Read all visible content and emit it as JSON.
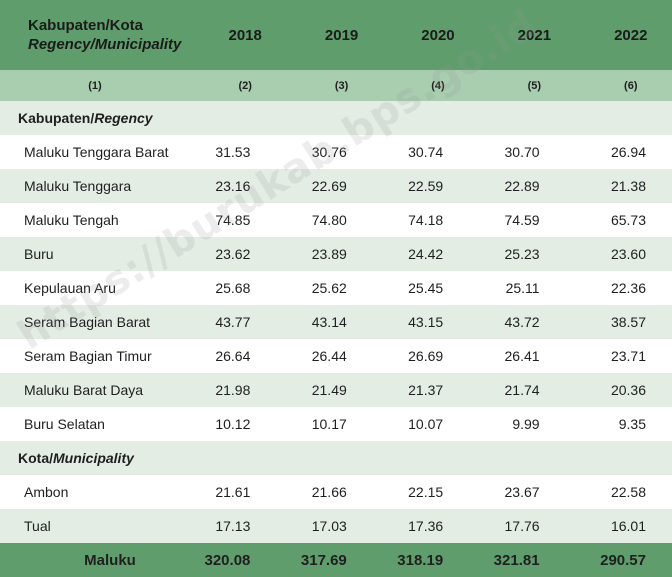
{
  "header": {
    "col1_line1": "Kabupaten/Kota",
    "col1_line2": "Regency/Municipality",
    "years": [
      "2018",
      "2019",
      "2020",
      "2021",
      "2022"
    ],
    "col_numbers": [
      "(1)",
      "(2)",
      "(3)",
      "(4)",
      "(5)",
      "(6)"
    ]
  },
  "sections": {
    "regency": {
      "label_plain": "Kabupaten/",
      "label_italic": "Regency"
    },
    "municipality": {
      "label_plain": "Kota/",
      "label_italic": "Municipality"
    }
  },
  "regencies": [
    {
      "name": "Maluku Tenggara Barat",
      "values": [
        "31.53",
        "30.76",
        "30.74",
        "30.70",
        "26.94"
      ]
    },
    {
      "name": "Maluku Tenggara",
      "values": [
        "23.16",
        "22.69",
        "22.59",
        "22.89",
        "21.38"
      ]
    },
    {
      "name": "Maluku Tengah",
      "values": [
        "74.85",
        "74.80",
        "74.18",
        "74.59",
        "65.73"
      ]
    },
    {
      "name": "Buru",
      "values": [
        "23.62",
        "23.89",
        "24.42",
        "25.23",
        "23.60"
      ]
    },
    {
      "name": "Kepulauan Aru",
      "values": [
        "25.68",
        "25.62",
        "25.45",
        "25.11",
        "22.36"
      ]
    },
    {
      "name": "Seram Bagian Barat",
      "values": [
        "43.77",
        "43.14",
        "43.15",
        "43.72",
        "38.57"
      ]
    },
    {
      "name": "Seram Bagian Timur",
      "values": [
        "26.64",
        "26.44",
        "26.69",
        "26.41",
        "23.71"
      ]
    },
    {
      "name": "Maluku Barat Daya",
      "values": [
        "21.98",
        "21.49",
        "21.37",
        "21.74",
        "20.36"
      ]
    },
    {
      "name": "Buru Selatan",
      "values": [
        "10.12",
        "10.17",
        "10.07",
        "9.99",
        "9.35"
      ]
    }
  ],
  "municipalities": [
    {
      "name": "Ambon",
      "values": [
        "21.61",
        "21.66",
        "22.15",
        "23.67",
        "22.58"
      ]
    },
    {
      "name": "Tual",
      "values": [
        "17.13",
        "17.03",
        "17.36",
        "17.76",
        "16.01"
      ]
    }
  ],
  "total": {
    "name": "Maluku",
    "values": [
      "320.08",
      "317.69",
      "318.19",
      "321.81",
      "290.57"
    ]
  },
  "watermark": "https://burukab.bps.go.id"
}
